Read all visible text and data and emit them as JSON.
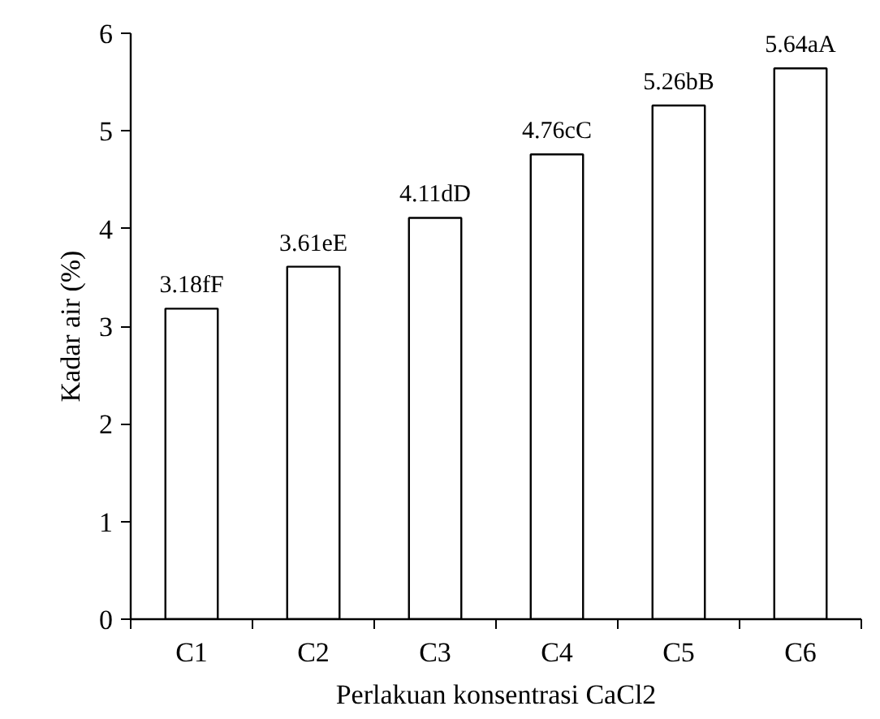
{
  "chart_data": {
    "type": "bar",
    "xlabel": "Perlakuan konsentrasi CaCl2",
    "ylabel": "Kadar air (%)",
    "categories": [
      "C1",
      "C2",
      "C3",
      "C4",
      "C5",
      "C6"
    ],
    "values": [
      3.18,
      3.61,
      4.11,
      4.76,
      5.26,
      5.64
    ],
    "value_labels": [
      "3.18fF",
      "3.61eE",
      "4.11dD",
      "4.76cC",
      "5.26bB",
      "5.64aA"
    ],
    "color": "#ffffff",
    "ylim": [
      0,
      6
    ],
    "yticks": [
      0,
      1,
      2,
      3,
      4,
      5,
      6
    ],
    "grid": false
  }
}
